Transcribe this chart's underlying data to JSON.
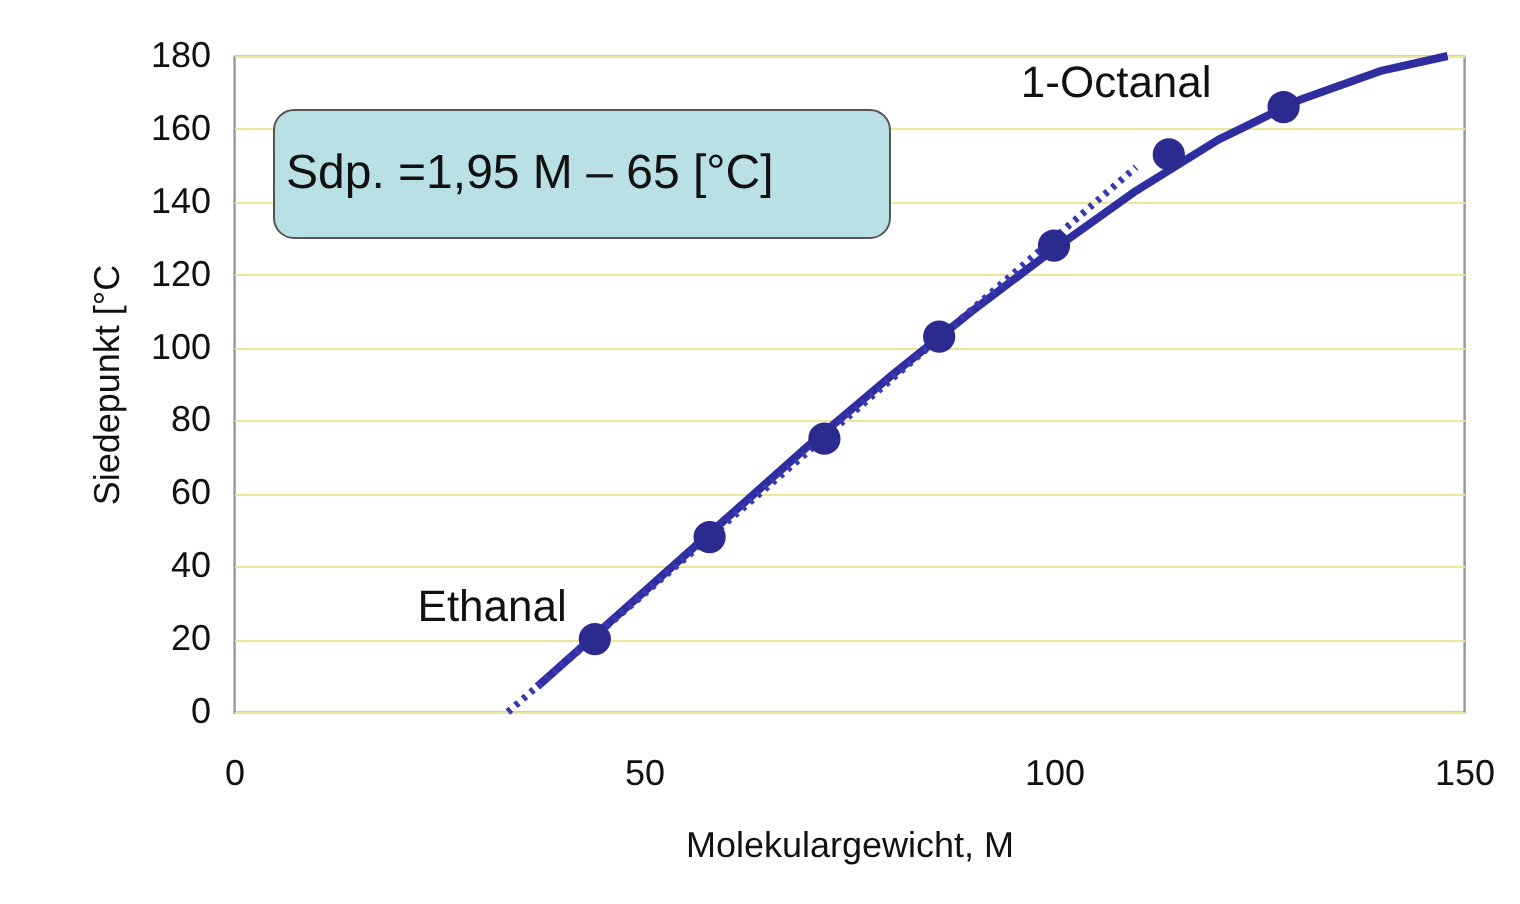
{
  "chart_data": {
    "type": "scatter",
    "xlabel": "Molekulargewicht,  M",
    "ylabel": "Siedepunkt [°C",
    "xlim": [
      0,
      150
    ],
    "xticks": [
      0,
      50,
      100,
      150
    ],
    "ylim": [
      0,
      180
    ],
    "yticks": [
      0,
      20,
      40,
      60,
      80,
      100,
      120,
      140,
      160,
      180
    ],
    "grid": "y",
    "series": [
      {
        "color": "#2b2b8f",
        "marker": "circle",
        "x": [
          44,
          58,
          72,
          86,
          100,
          114,
          128
        ],
        "values": [
          20,
          48,
          75,
          103,
          128,
          153,
          166
        ]
      },
      {
        "type": "line",
        "color": "#2e2ea0",
        "line_style": "solid",
        "x": [
          37,
          50,
          60,
          70,
          80,
          90,
          100,
          110,
          120,
          130,
          140,
          148
        ],
        "values": [
          7,
          33,
          53,
          73,
          92,
          110,
          127,
          143,
          157,
          168,
          176,
          180
        ]
      },
      {
        "type": "line",
        "color": "#3a3ab0",
        "line_style": "dotted",
        "x": [
          33.4,
          110
        ],
        "values": [
          0,
          149.5
        ]
      }
    ],
    "annotations": [
      "Sdp. =1,95 M – 65 [°C]",
      {
        "text": "Ethanal",
        "x": 44,
        "y": 20
      },
      {
        "text": "1-Octanal",
        "x": 128,
        "y": 166
      }
    ]
  }
}
